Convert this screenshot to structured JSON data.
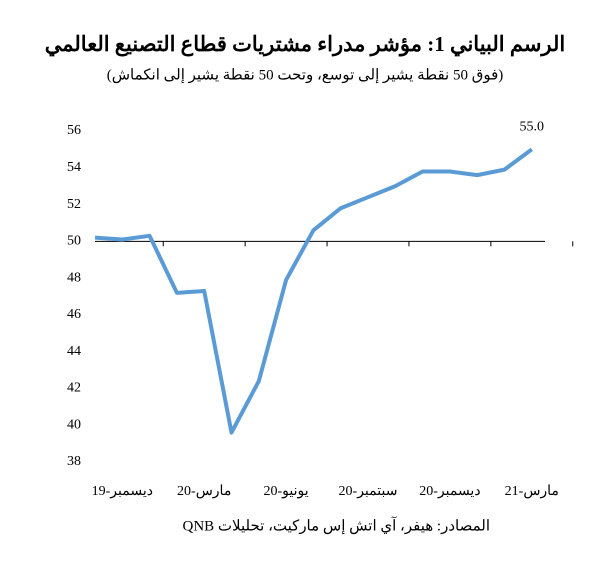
{
  "chart_data": {
    "type": "line",
    "title": "الرسم البياني 1: مؤشر مدراء مشتريات قطاع التصنيع العالمي",
    "subtitle": "(فوق 50 نقطة يشير إلى توسع، وتحت 50 نقطة يشير إلى انكماش)",
    "source": "المصادر: هيفر، آي اتش إس ماركيت، تحليلات QNB",
    "categories": [
      null,
      "ديسمبر-19",
      null,
      null,
      "مارس-20",
      null,
      null,
      "يونيو-20",
      null,
      null,
      "سبتمبر-20",
      null,
      null,
      "ديسمبر-20",
      null,
      null,
      "مارس-21"
    ],
    "values": [
      50.2,
      50.1,
      50.3,
      47.2,
      47.3,
      39.6,
      42.4,
      47.9,
      50.6,
      51.8,
      52.4,
      53.0,
      53.8,
      53.8,
      53.6,
      53.9,
      55.0
    ],
    "value_labels": [
      null,
      null,
      null,
      null,
      null,
      null,
      null,
      null,
      null,
      null,
      null,
      null,
      null,
      null,
      null,
      null,
      "55.0"
    ],
    "color": "#5b9bd5",
    "ylim": [
      38,
      56
    ],
    "yticks": [
      38,
      40,
      42,
      44,
      46,
      48,
      50,
      52,
      54,
      56
    ],
    "x_axis_crosses": 50
  }
}
